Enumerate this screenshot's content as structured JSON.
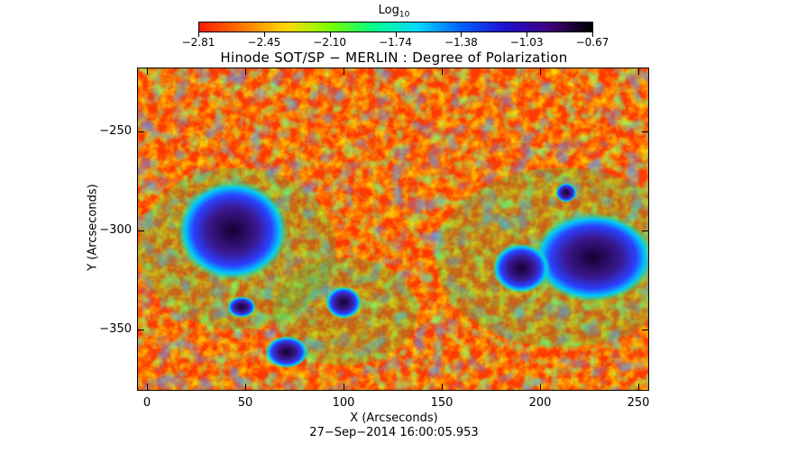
{
  "colorbar": {
    "label": "Log",
    "label_sub": "10",
    "ticks": [
      "−2.81",
      "−2.45",
      "−2.10",
      "−1.74",
      "−1.38",
      "−1.03",
      "−0.67"
    ],
    "colors": [
      "#ff1a00",
      "#ff7a00",
      "#ffd800",
      "#7aff00",
      "#00ff8a",
      "#00d8ff",
      "#0060ff",
      "#2010d0",
      "#400080",
      "#000000"
    ]
  },
  "title": "Hinode SOT/SP − MERLIN : Degree of Polarization",
  "axes": {
    "xlabel": "X (Arcseconds)",
    "ylabel": "Y (Arcseconds)",
    "xticks": [
      "0",
      "50",
      "100",
      "150",
      "200",
      "250"
    ],
    "yticks": [
      "−250",
      "−300",
      "−350"
    ]
  },
  "timestamp": "27−Sep−2014 16:00:05.953"
}
